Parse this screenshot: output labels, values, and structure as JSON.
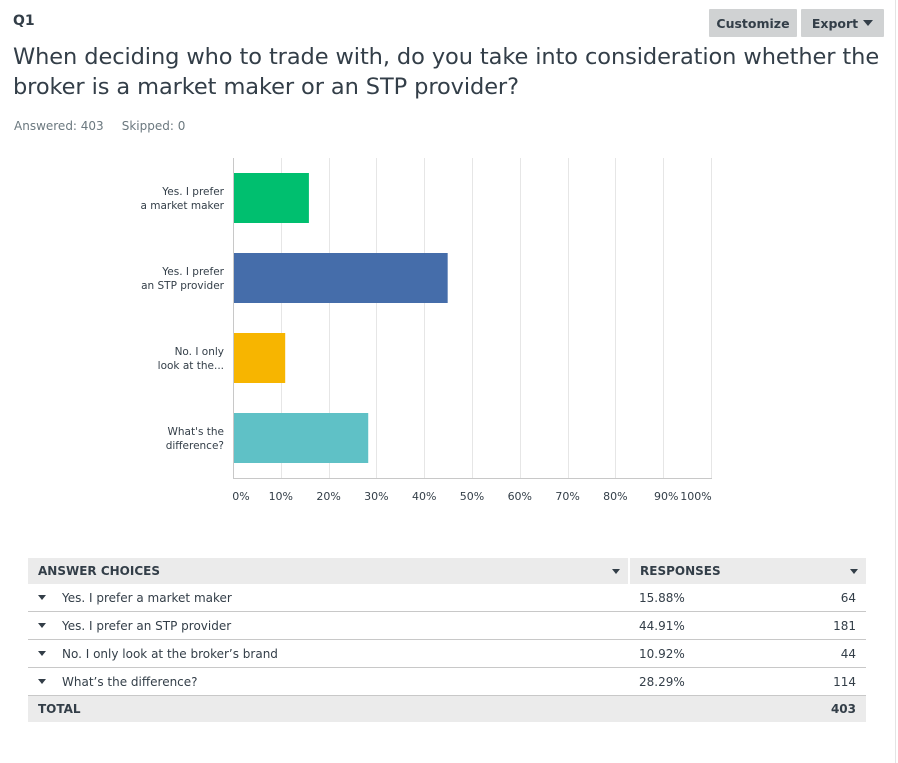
{
  "question": {
    "number": "Q1",
    "text": "When deciding who to trade with, do you take into consideration whether the broker is a market maker or an STP provider?",
    "answered_label": "Answered: 403",
    "skipped_label": "Skipped: 0"
  },
  "toolbar": {
    "customize_label": "Customize",
    "export_label": "Export"
  },
  "chart_data": {
    "type": "bar",
    "orientation": "horizontal",
    "title": "",
    "xlabel": "",
    "ylabel": "",
    "categories": [
      [
        "Yes. I prefer",
        "a market maker"
      ],
      [
        "Yes. I prefer",
        "an STP provider"
      ],
      [
        "No. I only",
        "look at the..."
      ],
      [
        "What's the",
        "difference?"
      ]
    ],
    "values": [
      15.88,
      44.91,
      10.92,
      28.29
    ],
    "colors": [
      "#00bf6f",
      "#456daa",
      "#f7b500",
      "#5fc1c6"
    ],
    "x_ticks": [
      "0%",
      "10%",
      "20%",
      "30%",
      "40%",
      "50%",
      "60%",
      "70%",
      "80%",
      "90%",
      "100%"
    ],
    "xlim": [
      0,
      100
    ],
    "grid": true,
    "legend": "none"
  },
  "table": {
    "headers": {
      "choices": "ANSWER CHOICES",
      "responses": "RESPONSES"
    },
    "rows": [
      {
        "choice": "Yes. I prefer a market maker",
        "percent": "15.88%",
        "count": "64"
      },
      {
        "choice": "Yes. I prefer an STP provider",
        "percent": "44.91%",
        "count": "181"
      },
      {
        "choice": "No. I only look at the broker’s brand",
        "percent": "10.92%",
        "count": "44"
      },
      {
        "choice": "What’s the difference?",
        "percent": "28.29%",
        "count": "114"
      }
    ],
    "total_label": "TOTAL",
    "total_count": "403"
  }
}
